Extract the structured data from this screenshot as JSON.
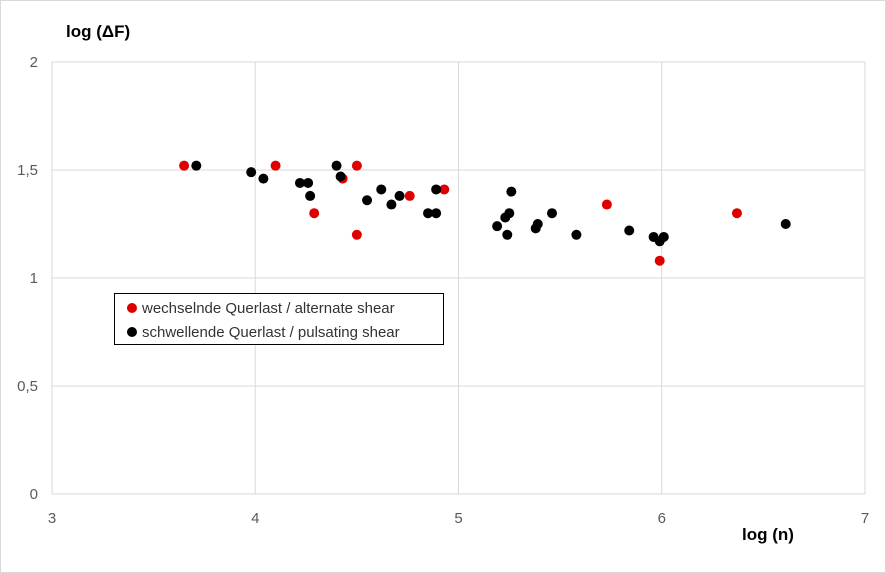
{
  "chart_data": {
    "type": "scatter",
    "xlabel": "log (n)",
    "ylabel": "log (ΔF)",
    "xlim": [
      3,
      7
    ],
    "ylim": [
      0,
      2
    ],
    "x_ticks": [
      "3",
      "4",
      "5",
      "6",
      "7"
    ],
    "y_ticks": [
      "0",
      "0,5",
      "1",
      "1,5",
      "2"
    ],
    "grid": true,
    "legend_position": "left-middle",
    "series": [
      {
        "name": "wechselnde Querlast / alternate shear",
        "color": "#e00000",
        "points": [
          [
            3.65,
            1.52
          ],
          [
            4.1,
            1.52
          ],
          [
            4.29,
            1.3
          ],
          [
            4.43,
            1.46
          ],
          [
            4.5,
            1.52
          ],
          [
            4.5,
            1.2
          ],
          [
            4.76,
            1.38
          ],
          [
            4.93,
            1.41
          ],
          [
            5.73,
            1.34
          ],
          [
            5.99,
            1.08
          ],
          [
            6.37,
            1.3
          ]
        ]
      },
      {
        "name": "schwellende Querlast / pulsating shear",
        "color": "#000000",
        "points": [
          [
            3.71,
            1.52
          ],
          [
            3.98,
            1.49
          ],
          [
            4.04,
            1.46
          ],
          [
            4.22,
            1.44
          ],
          [
            4.26,
            1.44
          ],
          [
            4.27,
            1.38
          ],
          [
            4.4,
            1.52
          ],
          [
            4.42,
            1.47
          ],
          [
            4.55,
            1.36
          ],
          [
            4.62,
            1.41
          ],
          [
            4.67,
            1.34
          ],
          [
            4.71,
            1.38
          ],
          [
            4.85,
            1.3
          ],
          [
            4.89,
            1.3
          ],
          [
            4.89,
            1.41
          ],
          [
            5.19,
            1.24
          ],
          [
            5.23,
            1.28
          ],
          [
            5.25,
            1.3
          ],
          [
            5.24,
            1.2
          ],
          [
            5.26,
            1.4
          ],
          [
            5.38,
            1.23
          ],
          [
            5.39,
            1.25
          ],
          [
            5.46,
            1.3
          ],
          [
            5.58,
            1.2
          ],
          [
            5.84,
            1.22
          ],
          [
            5.96,
            1.19
          ],
          [
            5.99,
            1.17
          ],
          [
            6.01,
            1.19
          ],
          [
            6.61,
            1.25
          ]
        ]
      }
    ]
  }
}
